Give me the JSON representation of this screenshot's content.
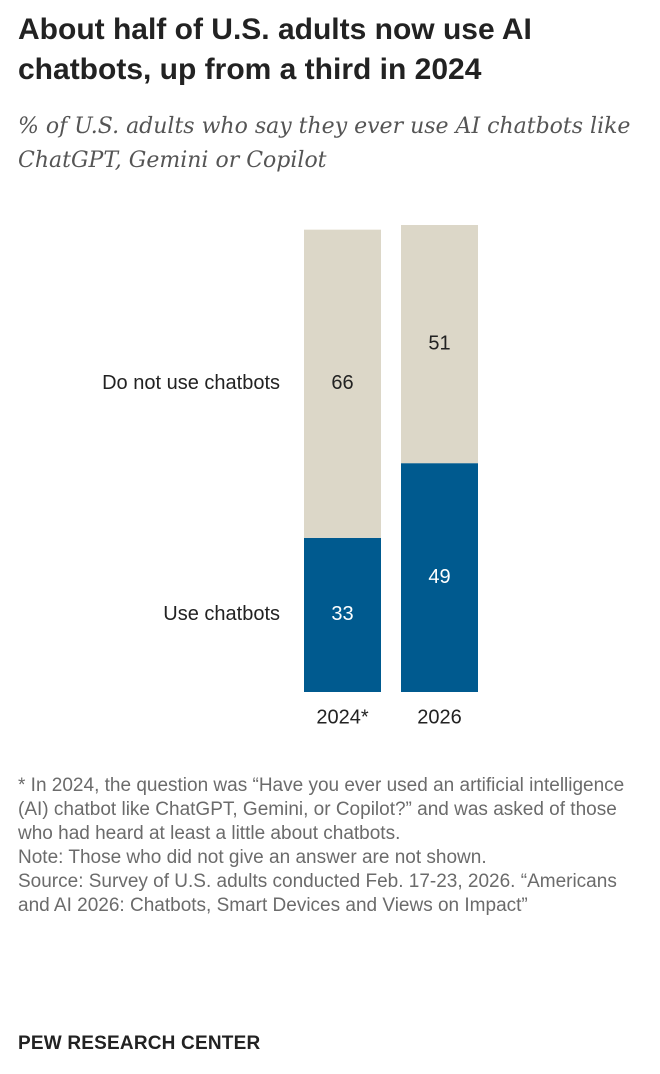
{
  "title": "About half of U.S. adults now use AI chatbots, up from a third in 2024",
  "subtitle": "% of U.S. adults who say they ever use AI chatbots like ChatGPT, Gemini or Copilot",
  "chart_data": {
    "type": "bar",
    "stacked": true,
    "orientation": "vertical",
    "categories": [
      "2024*",
      "2026"
    ],
    "series": [
      {
        "name": "Use chatbots",
        "values": [
          33,
          49
        ],
        "color": "#005a8f",
        "label_color": "#ffffff"
      },
      {
        "name": "Do not use chatbots",
        "values": [
          66,
          51
        ],
        "color": "#dcd7c8",
        "label_color": "#222222"
      }
    ],
    "ylim": [
      0,
      100
    ],
    "grid": false,
    "legend": "left inline labels"
  },
  "notes": [
    "* In 2024, the question was “Have you ever used an artificial intelligence (AI) chatbot like ChatGPT, Gemini, or Copilot?” and was asked of those who had heard at least a little about chatbots.",
    "Note: Those who did not give an answer are not shown.",
    "Source: Survey of U.S. adults conducted Feb. 17-23, 2026. “Americans and AI 2026: Chatbots, Smart Devices and Views on Impact”"
  ],
  "brand": "PEW RESEARCH CENTER"
}
